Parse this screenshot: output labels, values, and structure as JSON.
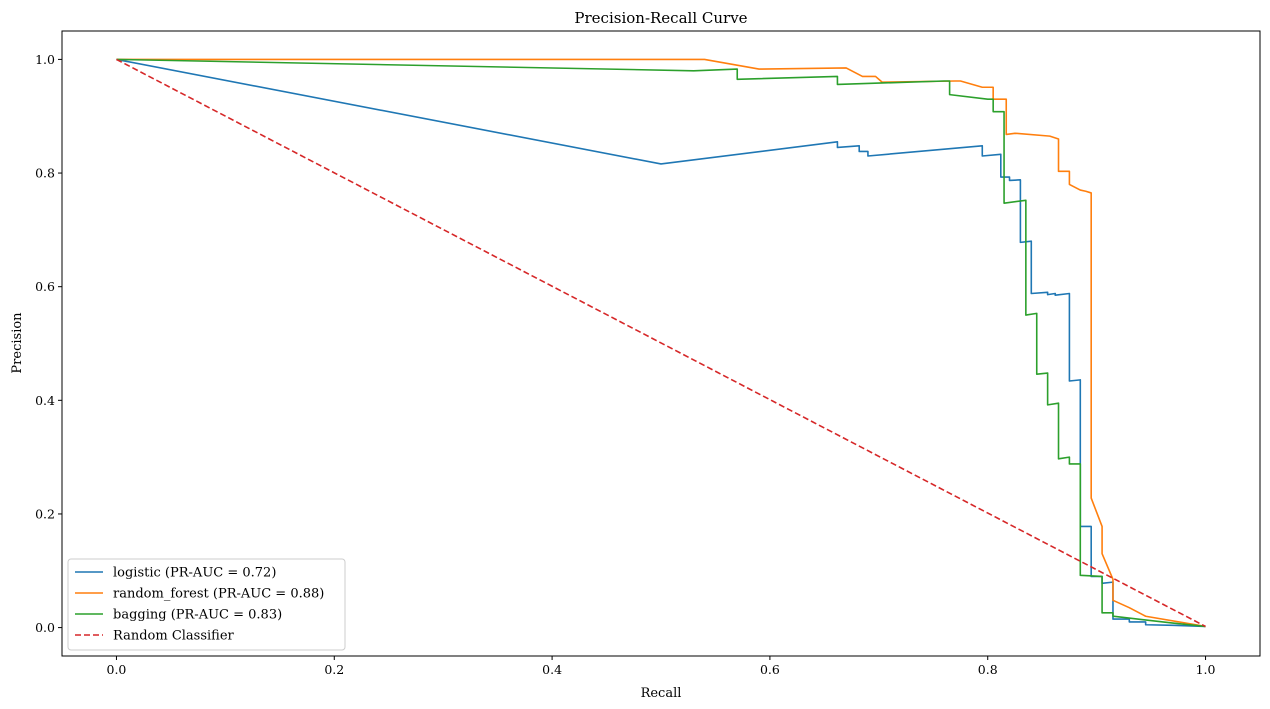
{
  "chart_data": {
    "type": "line",
    "title": "Precision-Recall Curve",
    "xlabel": "Recall",
    "ylabel": "Precision",
    "xlim": [
      -0.05,
      1.05
    ],
    "ylim": [
      -0.05,
      1.05
    ],
    "xticks": [
      "0.0",
      "0.2",
      "0.4",
      "0.6",
      "0.8",
      "1.0"
    ],
    "yticks": [
      "0.0",
      "0.2",
      "0.4",
      "0.6",
      "0.8",
      "1.0"
    ],
    "grid": false,
    "legend_position": "lower-left",
    "series": [
      {
        "name": "logistic (PR-AUC = 0.72)",
        "color": "#1f77b4",
        "style": "solid",
        "points": [
          [
            0.0,
            1.0
          ],
          [
            0.5,
            0.816
          ],
          [
            0.662,
            0.855
          ],
          [
            0.662,
            0.845
          ],
          [
            0.682,
            0.848
          ],
          [
            0.682,
            0.838
          ],
          [
            0.69,
            0.838
          ],
          [
            0.69,
            0.83
          ],
          [
            0.795,
            0.848
          ],
          [
            0.795,
            0.83
          ],
          [
            0.812,
            0.833
          ],
          [
            0.812,
            0.793
          ],
          [
            0.82,
            0.793
          ],
          [
            0.82,
            0.787
          ],
          [
            0.83,
            0.788
          ],
          [
            0.83,
            0.678
          ],
          [
            0.84,
            0.68
          ],
          [
            0.84,
            0.588
          ],
          [
            0.855,
            0.59
          ],
          [
            0.855,
            0.586
          ],
          [
            0.862,
            0.588
          ],
          [
            0.862,
            0.585
          ],
          [
            0.875,
            0.588
          ],
          [
            0.875,
            0.434
          ],
          [
            0.885,
            0.436
          ],
          [
            0.885,
            0.178
          ],
          [
            0.895,
            0.178
          ],
          [
            0.895,
            0.09
          ],
          [
            0.905,
            0.09
          ],
          [
            0.905,
            0.078
          ],
          [
            0.915,
            0.08
          ],
          [
            0.915,
            0.015
          ],
          [
            0.93,
            0.015
          ],
          [
            0.93,
            0.01
          ],
          [
            0.945,
            0.01
          ],
          [
            0.945,
            0.005
          ],
          [
            0.97,
            0.004
          ],
          [
            1.0,
            0.002
          ]
        ]
      },
      {
        "name": "random_forest (PR-AUC = 0.88)",
        "color": "#ff7f0e",
        "style": "solid",
        "points": [
          [
            0.0,
            1.0
          ],
          [
            0.5,
            1.0
          ],
          [
            0.54,
            1.0
          ],
          [
            0.59,
            0.983
          ],
          [
            0.67,
            0.985
          ],
          [
            0.685,
            0.97
          ],
          [
            0.697,
            0.97
          ],
          [
            0.703,
            0.96
          ],
          [
            0.77,
            0.962
          ],
          [
            0.775,
            0.962
          ],
          [
            0.795,
            0.951
          ],
          [
            0.805,
            0.951
          ],
          [
            0.805,
            0.93
          ],
          [
            0.817,
            0.93
          ],
          [
            0.817,
            0.868
          ],
          [
            0.825,
            0.87
          ],
          [
            0.857,
            0.865
          ],
          [
            0.865,
            0.86
          ],
          [
            0.865,
            0.803
          ],
          [
            0.875,
            0.803
          ],
          [
            0.875,
            0.78
          ],
          [
            0.885,
            0.77
          ],
          [
            0.89,
            0.768
          ],
          [
            0.895,
            0.765
          ],
          [
            0.895,
            0.228
          ],
          [
            0.905,
            0.178
          ],
          [
            0.905,
            0.13
          ],
          [
            0.915,
            0.085
          ],
          [
            0.915,
            0.048
          ],
          [
            0.93,
            0.035
          ],
          [
            0.945,
            0.02
          ],
          [
            1.0,
            0.002
          ]
        ]
      },
      {
        "name": "bagging (PR-AUC = 0.83)",
        "color": "#2ca02c",
        "style": "solid",
        "points": [
          [
            0.0,
            1.0
          ],
          [
            0.53,
            0.98
          ],
          [
            0.57,
            0.983
          ],
          [
            0.57,
            0.965
          ],
          [
            0.662,
            0.97
          ],
          [
            0.662,
            0.956
          ],
          [
            0.76,
            0.962
          ],
          [
            0.765,
            0.962
          ],
          [
            0.765,
            0.938
          ],
          [
            0.8,
            0.93
          ],
          [
            0.805,
            0.93
          ],
          [
            0.805,
            0.908
          ],
          [
            0.815,
            0.908
          ],
          [
            0.815,
            0.747
          ],
          [
            0.835,
            0.752
          ],
          [
            0.835,
            0.55
          ],
          [
            0.845,
            0.553
          ],
          [
            0.845,
            0.446
          ],
          [
            0.855,
            0.448
          ],
          [
            0.855,
            0.392
          ],
          [
            0.865,
            0.395
          ],
          [
            0.865,
            0.297
          ],
          [
            0.875,
            0.3
          ],
          [
            0.875,
            0.288
          ],
          [
            0.885,
            0.288
          ],
          [
            0.885,
            0.092
          ],
          [
            0.905,
            0.09
          ],
          [
            0.905,
            0.026
          ],
          [
            0.915,
            0.026
          ],
          [
            0.915,
            0.02
          ],
          [
            0.97,
            0.008
          ],
          [
            1.0,
            0.002
          ]
        ]
      },
      {
        "name": "Random Classifier",
        "color": "#d62728",
        "style": "dashed",
        "points": [
          [
            0.0,
            1.0
          ],
          [
            1.0,
            0.002
          ]
        ]
      }
    ]
  }
}
